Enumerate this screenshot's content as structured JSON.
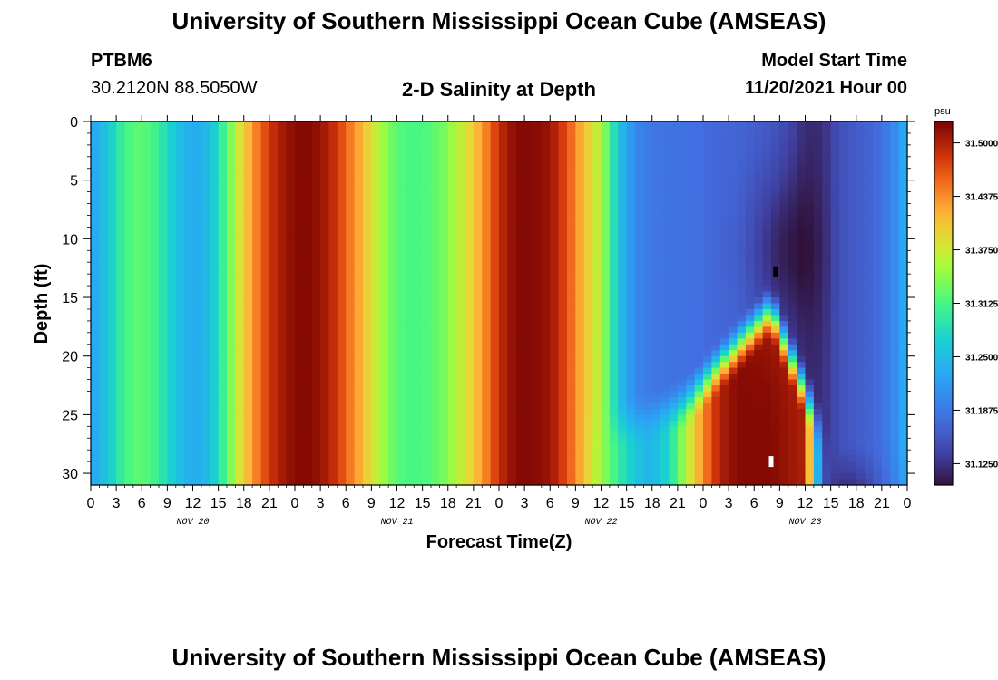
{
  "header": {
    "title": "University of Southern Mississippi Ocean Cube (AMSEAS)",
    "station_id": "PTBM6",
    "station_coords": "30.2120N  88.5050W",
    "plot_title": "2-D Salinity at Depth",
    "model_start_label": "Model Start Time",
    "model_start_value": "11/20/2021 Hour 00"
  },
  "footer": {
    "repeated_title": "University of Southern Mississippi Ocean Cube (AMSEAS)"
  },
  "chart_data": {
    "type": "heatmap",
    "title": "2-D Salinity at Depth",
    "xlabel": "Forecast Time(Z)",
    "ylabel": "Depth (ft)",
    "x_range_hours": [
      0,
      96
    ],
    "y_range_ft": [
      0,
      31
    ],
    "x_tick_labels": [
      "0",
      "3",
      "6",
      "9",
      "12",
      "15",
      "18",
      "21",
      "0",
      "3",
      "6",
      "9",
      "12",
      "15",
      "18",
      "21",
      "0",
      "3",
      "6",
      "9",
      "12",
      "15",
      "18",
      "21",
      "0",
      "3",
      "6",
      "9",
      "12",
      "15",
      "18",
      "21",
      "0"
    ],
    "day_labels": [
      {
        "label": "NOV 20",
        "hour": 12
      },
      {
        "label": "NOV 21",
        "hour": 36
      },
      {
        "label": "NOV 22",
        "hour": 60
      },
      {
        "label": "NOV 23",
        "hour": 84
      }
    ],
    "y_ticks": [
      0,
      5,
      10,
      15,
      20,
      25,
      30
    ],
    "colorbar": {
      "unit": "psu",
      "min": 31.1,
      "max": 31.525,
      "tick_labels": [
        "31.5000",
        "31.4375",
        "31.3750",
        "31.3125",
        "31.2500",
        "31.1875",
        "31.1250"
      ],
      "tick_values": [
        31.5,
        31.4375,
        31.375,
        31.3125,
        31.25,
        31.1875,
        31.125
      ]
    },
    "surface_salinity_by_hour": {
      "hours": [
        0,
        2,
        4,
        6,
        8,
        10,
        12,
        14,
        16,
        18,
        20,
        22,
        24,
        26,
        28,
        30,
        32,
        34,
        36,
        38,
        40,
        42,
        44,
        46,
        48,
        50,
        52,
        54,
        56,
        58,
        60,
        62,
        64,
        66,
        68,
        70,
        72,
        74,
        76,
        78,
        80,
        82,
        84,
        86,
        88,
        90,
        92,
        94,
        96
      ],
      "values": [
        31.225,
        31.26,
        31.31,
        31.325,
        31.3,
        31.26,
        31.23,
        31.25,
        31.32,
        31.4,
        31.46,
        31.5,
        31.52,
        31.52,
        31.5,
        31.46,
        31.41,
        31.36,
        31.32,
        31.31,
        31.32,
        31.34,
        31.38,
        31.43,
        31.49,
        31.52,
        31.52,
        31.51,
        31.47,
        31.41,
        31.36,
        31.26,
        31.2,
        31.185,
        31.18,
        31.18,
        31.175,
        31.17,
        31.17,
        31.165,
        31.16,
        31.145,
        31.12,
        31.12,
        31.15,
        31.16,
        31.17,
        31.19,
        31.24
      ]
    },
    "bottom_salinity_by_hour": {
      "hours": [
        56,
        58,
        60,
        62,
        64,
        66,
        68,
        70,
        72,
        74,
        76,
        78,
        80,
        82,
        84,
        86,
        88,
        90,
        92,
        94,
        96
      ],
      "values": [
        31.47,
        31.41,
        31.35,
        31.3,
        31.26,
        31.24,
        31.28,
        31.36,
        31.44,
        31.5,
        31.52,
        31.52,
        31.52,
        31.51,
        31.5,
        31.15,
        31.12,
        31.12,
        31.15,
        31.18,
        31.23
      ]
    },
    "markers": [
      {
        "kind": "minimum",
        "hour": 80.5,
        "depth_ft": 12.8,
        "color": "#000000"
      },
      {
        "kind": "maximum",
        "hour": 80.0,
        "depth_ft": 29.0,
        "color": "#ffffff"
      }
    ]
  }
}
